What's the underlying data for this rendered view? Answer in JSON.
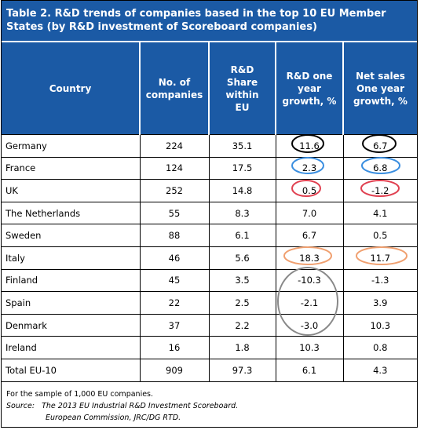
{
  "title": "Table 2.  R&D trends of companies based in the top 10 EU Member States (by R&D investment of Scoreboard companies)",
  "table": {
    "header": [
      [
        "Country"
      ],
      [
        "No. of",
        "companies"
      ],
      [
        "R&D",
        "Share",
        "within",
        "EU"
      ],
      [
        "R&D one",
        "year",
        "growth, %"
      ],
      [
        "Net sales",
        "One year",
        "growth, %"
      ]
    ],
    "rows": [
      [
        "Germany",
        "224",
        "35.1",
        "11.6",
        "6.7"
      ],
      [
        "France",
        "124",
        "17.5",
        "2.3",
        "6.8"
      ],
      [
        "UK",
        "252",
        "14.8",
        "0.5",
        "-1.2"
      ],
      [
        "The Netherlands",
        "55",
        "8.3",
        "7.0",
        "4.1"
      ],
      [
        "Sweden",
        "88",
        "6.1",
        "6.7",
        "0.5"
      ],
      [
        "Italy",
        "46",
        "5.6",
        "18.3",
        "11.7"
      ],
      [
        "Finland",
        "45",
        "3.5",
        "-10.3",
        "-1.3"
      ],
      [
        "Spain",
        "22",
        "2.5",
        "-2.1",
        "3.9"
      ],
      [
        "Denmark",
        "37",
        "2.2",
        "-3.0",
        "10.3"
      ],
      [
        "Ireland",
        "16",
        "1.8",
        "10.3",
        "0.8"
      ],
      [
        "Total EU-10",
        "909",
        "97.3",
        "6.1",
        "4.3"
      ]
    ]
  },
  "footnotes": {
    "sample": "For the sample of 1,000 EU companies.",
    "source_label": "Source:",
    "source_lines": [
      "The 2013 EU Industrial R&D Investment Scoreboard.",
      "European Commission, JRC/DG RTD."
    ]
  }
}
